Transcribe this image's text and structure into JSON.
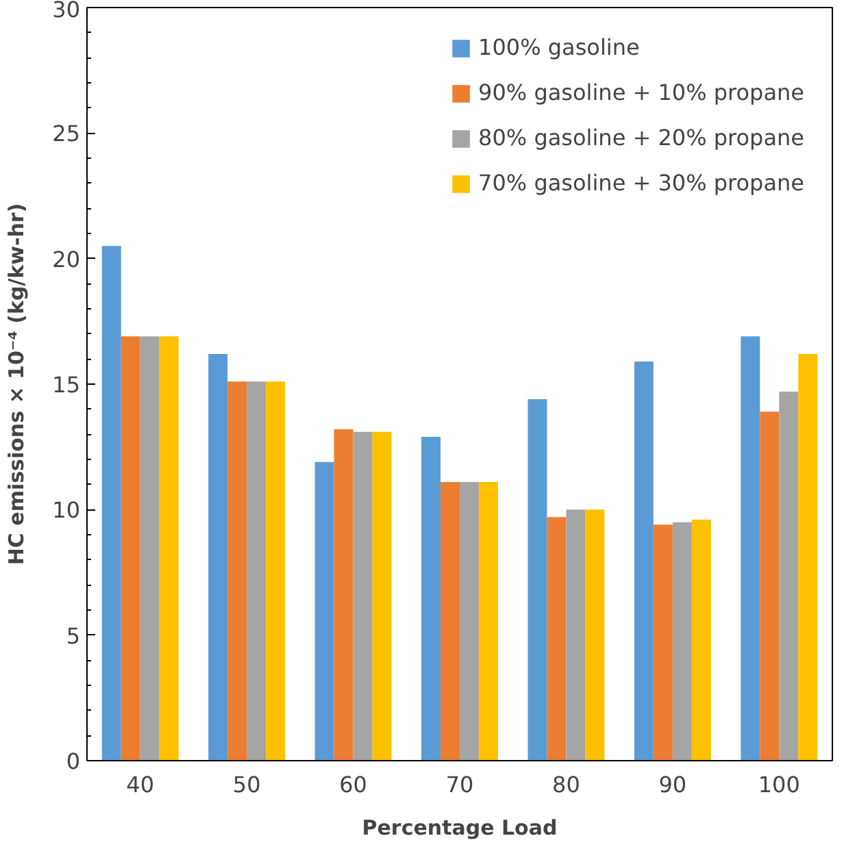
{
  "chart_data": {
    "type": "bar",
    "xlabel": "Percentage Load",
    "ylabel": "HC emissions × 10⁻⁴ (kg/kw-hr)",
    "categories": [
      "40",
      "50",
      "60",
      "70",
      "80",
      "90",
      "100"
    ],
    "series": [
      {
        "name": "100% gasoline",
        "color": "#5b9bd5",
        "values": [
          20.5,
          16.2,
          11.9,
          12.9,
          14.4,
          15.9,
          16.9
        ]
      },
      {
        "name": "90% gasoline + 10% propane",
        "color": "#ed7d31",
        "values": [
          16.9,
          15.1,
          13.2,
          11.1,
          9.7,
          9.4,
          13.9
        ]
      },
      {
        "name": "80% gasoline + 20% propane",
        "color": "#a5a5a5",
        "values": [
          16.9,
          15.1,
          13.1,
          11.1,
          10.0,
          9.5,
          14.7
        ]
      },
      {
        "name": "70% gasoline + 30% propane",
        "color": "#ffc000",
        "values": [
          16.9,
          15.1,
          13.1,
          11.1,
          10.0,
          9.6,
          16.2
        ]
      }
    ],
    "ylim": [
      0,
      30
    ],
    "yticks": [
      0,
      5,
      10,
      15,
      20,
      25,
      30
    ],
    "grid": false,
    "legend": "top right"
  }
}
